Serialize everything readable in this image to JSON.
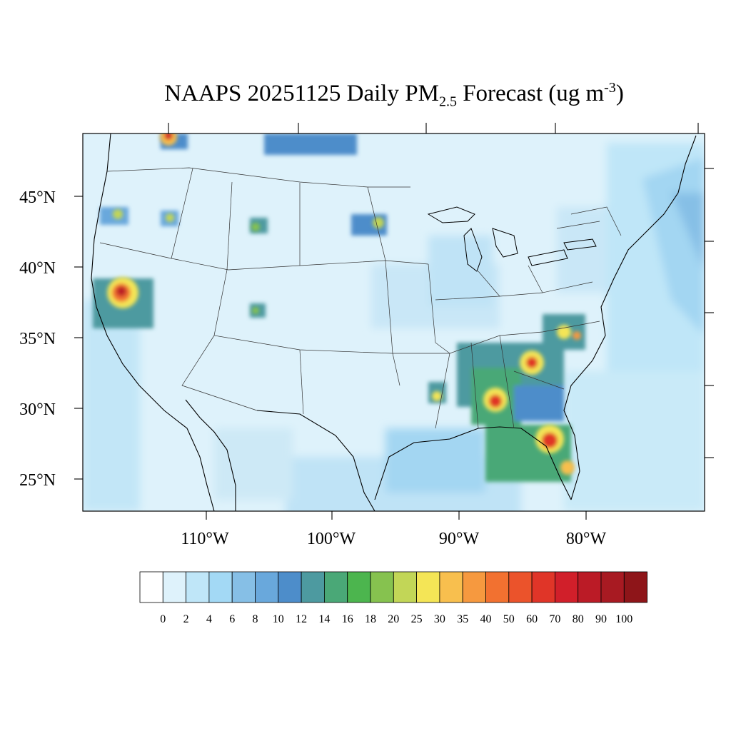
{
  "title": {
    "prefix": "NAAPS 20251125 Daily PM",
    "subscript": "2.5",
    "middle": " Forecast (ug m",
    "superscript": "-3",
    "suffix": ")"
  },
  "axes": {
    "lat_labels": [
      "45°N",
      "40°N",
      "35°N",
      "30°N",
      "25°N"
    ],
    "lon_labels": [
      "110°W",
      "100°W",
      "90°W",
      "80°W"
    ]
  },
  "colorbar": {
    "labels": [
      "0",
      "2",
      "4",
      "6",
      "8",
      "10",
      "12",
      "14",
      "16",
      "18",
      "20",
      "25",
      "30",
      "35",
      "40",
      "50",
      "60",
      "70",
      "80",
      "90",
      "100"
    ],
    "colors": [
      "#ffffff",
      "#def2fb",
      "#bfe6f8",
      "#a3d9f5",
      "#86bfe6",
      "#69a8dc",
      "#4d8dca",
      "#4d9aa0",
      "#4aa877",
      "#4cb54e",
      "#86c24f",
      "#c2d657",
      "#f4e556",
      "#f8bf4e",
      "#f6993f",
      "#f27130",
      "#eb532b",
      "#e03528",
      "#d11f2a",
      "#bb1b26",
      "#a81a22",
      "#8e1519"
    ]
  },
  "chart_data": {
    "type": "heatmap",
    "title": "NAAPS 20251125 Daily PM2.5 Forecast (ug m-3)",
    "region": "Contiguous United States",
    "x_axis": "longitude",
    "y_axis": "latitude",
    "xlim": [
      -120,
      -70
    ],
    "ylim": [
      23,
      49
    ],
    "units": "ug m-3",
    "levels": [
      0,
      2,
      4,
      6,
      8,
      10,
      12,
      14,
      16,
      18,
      20,
      25,
      30,
      35,
      40,
      50,
      60,
      70,
      80,
      90,
      100
    ],
    "hotspots": [
      {
        "region": "Northern California",
        "lon": -116.5,
        "lat": 38.2,
        "value": 80
      },
      {
        "region": "Northern Idaho/Canada border",
        "lon": -113,
        "lat": 49,
        "value": 70
      },
      {
        "region": "Oregon",
        "lon": -116.5,
        "lat": 43.5,
        "value": 25
      },
      {
        "region": "Idaho",
        "lon": -113.6,
        "lat": 43.4,
        "value": 25
      },
      {
        "region": "Wyoming",
        "lon": -105.5,
        "lat": 42.8,
        "value": 20
      },
      {
        "region": "Colorado",
        "lon": -105,
        "lat": 36.8,
        "value": 16
      },
      {
        "region": "South Dakota",
        "lon": -96.8,
        "lat": 43.2,
        "value": 25
      },
      {
        "region": "Alabama",
        "lon": -87.3,
        "lat": 30.4,
        "value": 50
      },
      {
        "region": "Georgia/South Carolina",
        "lon": -84.5,
        "lat": 33.2,
        "value": 50
      },
      {
        "region": "North Carolina",
        "lon": -82.3,
        "lat": 35.6,
        "value": 30
      },
      {
        "region": "Florida",
        "lon": -83.2,
        "lat": 27.6,
        "value": 70
      },
      {
        "region": "South Florida",
        "lon": -81.5,
        "lat": 25.8,
        "value": 35
      },
      {
        "region": "Louisiana",
        "lon": -91.7,
        "lat": 31,
        "value": 25
      }
    ]
  }
}
